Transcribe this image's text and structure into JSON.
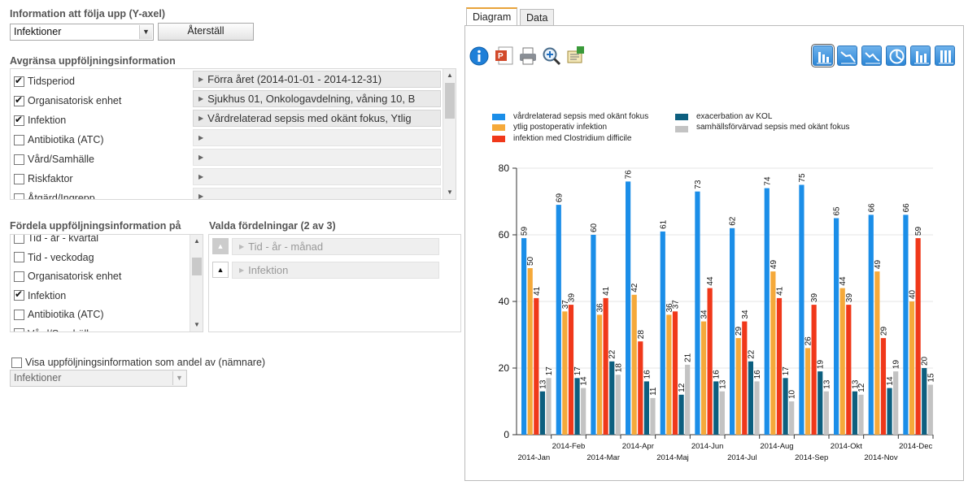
{
  "yaxis_section": {
    "title": "Information att följa upp (Y-axel)",
    "selected": "Infektioner",
    "reset_label": "Återställ"
  },
  "limit_section": {
    "title": "Avgränsa uppföljningsinformation",
    "items": [
      {
        "label": "Tidsperiod",
        "checked": true,
        "value": "Förra året (2014-01-01 - 2014-12-31)"
      },
      {
        "label": "Organisatorisk enhet",
        "checked": true,
        "value": "Sjukhus 01, Onkologavdelning, våning 10, B"
      },
      {
        "label": "Infektion",
        "checked": true,
        "value": "Vårdrelaterad sepsis med okänt fokus, Ytlig"
      },
      {
        "label": "Antibiotika (ATC)",
        "checked": false,
        "value": ""
      },
      {
        "label": "Vård/Samhälle",
        "checked": false,
        "value": ""
      },
      {
        "label": "Riskfaktor",
        "checked": false,
        "value": ""
      },
      {
        "label": "Åtgärd/Ingrepp",
        "checked": false,
        "value": ""
      }
    ]
  },
  "distribute_section": {
    "title": "Fördela uppföljningsinformation på",
    "items": [
      {
        "label": "Tid - år - kvartal",
        "checked": false
      },
      {
        "label": "Tid - veckodag",
        "checked": false
      },
      {
        "label": "Organisatorisk enhet",
        "checked": false
      },
      {
        "label": "Infektion",
        "checked": true
      },
      {
        "label": "Antibiotika (ATC)",
        "checked": false
      },
      {
        "label": "Vård/Samhälle",
        "checked": false
      }
    ]
  },
  "selected_distributions": {
    "title": "Valda fördelningar (2 av 3)",
    "items": [
      "Tid - år - månad",
      "Infektion"
    ]
  },
  "denominator": {
    "label": "Visa uppföljningsinformation som andel av (nämnare)",
    "checked": false,
    "selected": "Infektioner"
  },
  "tabs": [
    {
      "label": "Diagram",
      "active": true
    },
    {
      "label": "Data",
      "active": false
    }
  ],
  "toolbar_icons": [
    "info-icon",
    "powerpoint-icon",
    "print-icon",
    "zoom-icon",
    "export-icon"
  ],
  "chart_type_icons": [
    "bar-chart-icon",
    "line-chart-icon",
    "area-chart-icon",
    "pie-chart-icon",
    "stacked-bar-icon",
    "stacked-bar-full-icon"
  ],
  "colors": {
    "accent": "#e8a33a",
    "series": [
      "#1b8ee8",
      "#f5a93a",
      "#f0381a",
      "#0d5f7f",
      "#c3c3c3"
    ]
  },
  "chart_data": {
    "type": "bar",
    "categories": [
      "2014-Jan",
      "2014-Feb",
      "2014-Mar",
      "2014-Apr",
      "2014-Maj",
      "2014-Jun",
      "2014-Jul",
      "2014-Aug",
      "2014-Sep",
      "2014-Okt",
      "2014-Nov",
      "2014-Dec"
    ],
    "series": [
      {
        "name": "vårdrelaterad sepsis med okänt fokus",
        "values": [
          59,
          69,
          60,
          76,
          61,
          73,
          62,
          74,
          75,
          65,
          66,
          66
        ]
      },
      {
        "name": "ytlig postoperativ infektion",
        "values": [
          50,
          37,
          36,
          42,
          36,
          34,
          29,
          49,
          26,
          44,
          49,
          40
        ]
      },
      {
        "name": "infektion med Clostridium difficile",
        "values": [
          41,
          39,
          41,
          28,
          37,
          44,
          34,
          41,
          39,
          39,
          29,
          59
        ]
      },
      {
        "name": "exacerbation av KOL",
        "values": [
          13,
          17,
          22,
          16,
          12,
          16,
          22,
          17,
          19,
          13,
          14,
          20
        ]
      },
      {
        "name": "samhällsförvärvad sepsis med okänt fokus",
        "values": [
          17,
          14,
          18,
          11,
          21,
          13,
          16,
          10,
          13,
          12,
          19,
          15
        ]
      }
    ],
    "yticks": [
      0,
      20,
      40,
      60,
      80
    ],
    "ylim": [
      0,
      80
    ],
    "grid": true,
    "legend_position": "top"
  }
}
